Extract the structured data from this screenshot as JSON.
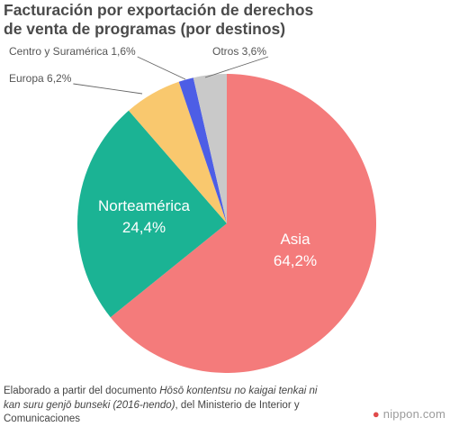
{
  "title_lines": [
    "Facturación por exportación de derechos",
    "de venta de programas (por destinos)"
  ],
  "chart_data": {
    "type": "pie",
    "title": "Facturación por exportación de derechos de venta de programas (por destinos)",
    "slices": [
      {
        "label": "Asia",
        "value": 64.2,
        "display": "64,2%",
        "color": "#f47b7b"
      },
      {
        "label": "Norteamérica",
        "value": 24.4,
        "display": "24,4%",
        "color": "#1bb394"
      },
      {
        "label": "Europa",
        "value": 6.2,
        "display": "6,2%",
        "color": "#f9c86e"
      },
      {
        "label": "Centro y Suramérica",
        "value": 1.6,
        "display": "1,6%",
        "color": "#4d5ee6"
      },
      {
        "label": "Otros",
        "value": 3.6,
        "display": "3,6%",
        "color": "#c9c9c9"
      }
    ]
  },
  "source": {
    "prefix": "Elaborado a partir del documento ",
    "work_title": "Hōsō kontentsu no kaigai tenkai ni kan suru genjō bunseki (2016-nendo)",
    "suffix": ", del Ministerio de Interior y Comunicaciones"
  },
  "brand": {
    "dot_glyph": "●",
    "name": "nippon.com"
  }
}
